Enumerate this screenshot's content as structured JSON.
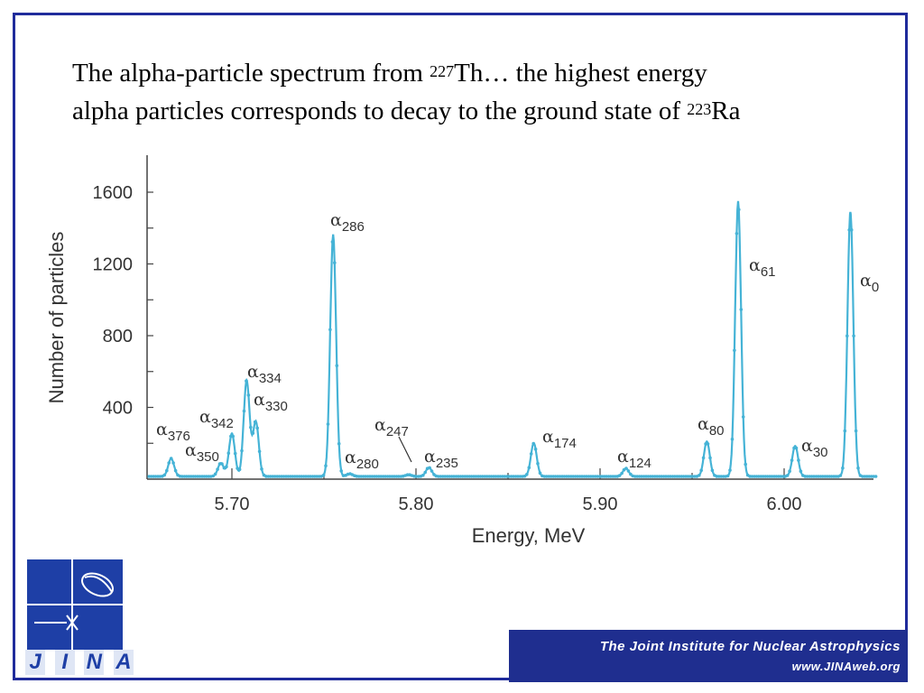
{
  "slide": {
    "title_part1": "The alpha-particle spectrum from ",
    "title_sup1": "227",
    "title_part2": "Th… the highest energy",
    "title_line2": "alpha particles corresponds to decay to the ground state of ",
    "title_sup2": "223",
    "title_part3": "Ra",
    "border_color": "#1f2b9b"
  },
  "logo": {
    "letters": [
      "J",
      "I",
      "N",
      "A"
    ],
    "color": "#1e3fa6"
  },
  "banner": {
    "line1": "The Joint Institute for Nuclear Astrophysics",
    "line2": "www.JINAweb.org",
    "color": "#1f2e8f"
  },
  "chart_data": {
    "type": "line",
    "xlabel": "Energy, MeV",
    "ylabel": "Number of particles",
    "xlim": [
      5.655,
      6.05
    ],
    "ylim": [
      0,
      1800
    ],
    "x_ticks": [
      5.7,
      5.8,
      5.9,
      6.0
    ],
    "x_tick_labels": [
      "5.70",
      "5.80",
      "5.90",
      "6.00"
    ],
    "y_ticks": [
      400,
      800,
      1200,
      1600
    ],
    "y_tick_labels": [
      "400",
      "800",
      "1200",
      "1600"
    ],
    "grid": false,
    "line_color": "#45b3d6",
    "baseline": 15,
    "peaks": [
      {
        "label_sub": "376",
        "x": 5.667,
        "y": 115
      },
      {
        "label_sub": "350",
        "x": 5.694,
        "y": 90
      },
      {
        "label_sub": "342",
        "x": 5.7,
        "y": 255
      },
      {
        "label_sub": "334",
        "x": 5.708,
        "y": 550
      },
      {
        "label_sub": "330",
        "x": 5.713,
        "y": 320
      },
      {
        "label_sub": "286",
        "x": 5.755,
        "y": 1365
      },
      {
        "label_sub": "280",
        "x": 5.764,
        "y": 30
      },
      {
        "label_sub": "247",
        "x": 5.796,
        "y": 25
      },
      {
        "label_sub": "235",
        "x": 5.807,
        "y": 65
      },
      {
        "label_sub": "174",
        "x": 5.864,
        "y": 200
      },
      {
        "label_sub": "124",
        "x": 5.914,
        "y": 60
      },
      {
        "label_sub": "80",
        "x": 5.958,
        "y": 210
      },
      {
        "label_sub": "61",
        "x": 5.975,
        "y": 1550
      },
      {
        "label_sub": "30",
        "x": 6.006,
        "y": 185
      },
      {
        "label_sub": "0",
        "x": 6.036,
        "y": 1490
      }
    ],
    "peak_symbol": "α"
  }
}
